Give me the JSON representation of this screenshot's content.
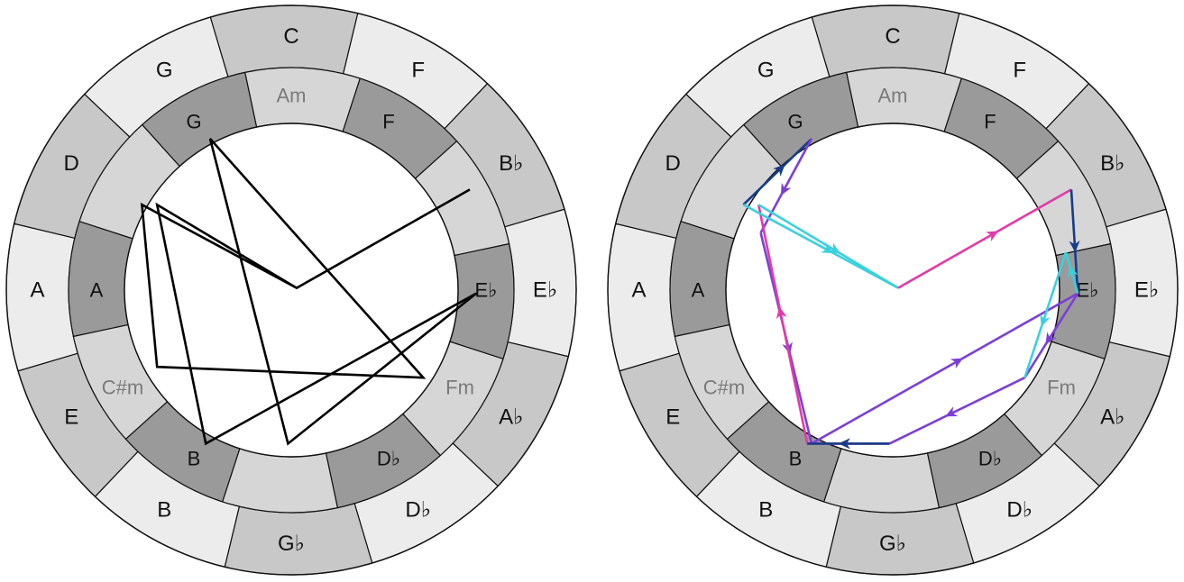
{
  "outer_keys": [
    "C",
    "F",
    "B♭",
    "E♭",
    "A♭",
    "D♭",
    "G♭",
    "B",
    "E",
    "A",
    "D",
    "G"
  ],
  "outer_fills": [
    "#c8c8c8",
    "#ececec",
    "#c8c8c8",
    "#ececec",
    "#c8c8c8",
    "#ececec",
    "#c8c8c8",
    "#ececec",
    "#c8c8c8",
    "#ececec",
    "#c8c8c8",
    "#ececec"
  ],
  "outer_label_visible": [
    true,
    false,
    true,
    false,
    true,
    false,
    true,
    false,
    true,
    false,
    true,
    false
  ],
  "inner_keys": [
    "Am",
    "F",
    "",
    "E♭",
    "Fm",
    "D♭",
    "",
    "B",
    "C#m",
    "A",
    "",
    "G"
  ],
  "inner_fills": [
    "#d6d6d6",
    "#9a9a9a",
    "#d6d6d6",
    "#9a9a9a",
    "#d6d6d6",
    "#9a9a9a",
    "#d6d6d6",
    "#9a9a9a",
    "#d6d6d6",
    "#9a9a9a",
    "#d6d6d6",
    "#9a9a9a"
  ],
  "inner_label_colors": [
    "#7a7a7a",
    "#111111",
    "#111111",
    "#111111",
    "#7a7a7a",
    "#111111",
    "#111111",
    "#111111",
    "#7a7a7a",
    "#111111",
    "#111111",
    "#111111"
  ],
  "left_diagram": {
    "vertices": [
      [
        1.65,
        0.93
      ],
      [
        0.05,
        0.02
      ],
      [
        -1.38,
        0.79
      ],
      [
        -1.24,
        -0.71
      ],
      [
        1.22,
        -0.81
      ],
      [
        -0.75,
        1.4
      ],
      [
        -0.03,
        -1.42
      ],
      [
        1.71,
        -0.03
      ],
      [
        -0.79,
        -1.42
      ],
      [
        -1.24,
        0.79
      ],
      [
        0.05,
        0.02
      ]
    ],
    "closed": true,
    "color": "#000000"
  },
  "right_diagram": {
    "segments": [
      {
        "from": [
          -1.38,
          0.79
        ],
        "to": [
          -0.75,
          1.4
        ],
        "color": "#153d8a"
      },
      {
        "from": [
          -0.75,
          1.4
        ],
        "to": [
          -1.22,
          0.53
        ],
        "color": "#7b3fd6"
      },
      {
        "from": [
          -1.22,
          0.53
        ],
        "to": [
          -0.75,
          -1.42
        ],
        "color": "#7b3fd6"
      },
      {
        "from": [
          -0.75,
          -1.42
        ],
        "to": [
          1.71,
          -0.03
        ],
        "color": "#7b3fd6"
      },
      {
        "from": [
          1.71,
          -0.03
        ],
        "to": [
          1.22,
          -0.81
        ],
        "color": "#7b3fd6"
      },
      {
        "from": [
          1.22,
          -0.81
        ],
        "to": [
          -0.03,
          -1.42
        ],
        "color": "#7b3fd6"
      },
      {
        "from": [
          -0.03,
          -1.42
        ],
        "to": [
          -0.79,
          -1.42
        ],
        "color": "#e23aa9"
      },
      {
        "from": [
          -0.79,
          -1.42
        ],
        "to": [
          -1.24,
          0.79
        ],
        "color": "#e23aa9"
      },
      {
        "from": [
          -1.24,
          0.79
        ],
        "to": [
          0.05,
          0.02
        ],
        "color": "#3ad0dd"
      },
      {
        "from": [
          -1.38,
          0.79
        ],
        "to": [
          0.05,
          0.02
        ],
        "color": "#3ad0dd"
      },
      {
        "from": [
          0.05,
          0.02
        ],
        "to": [
          1.65,
          0.93
        ],
        "color": "#e23aa9"
      },
      {
        "from": [
          1.65,
          0.93
        ],
        "to": [
          1.71,
          -0.03
        ],
        "color": "#153d8a"
      },
      {
        "from": [
          1.71,
          -0.03
        ],
        "to": [
          1.6,
          0.35
        ],
        "color": "#3ad0dd"
      },
      {
        "from": [
          1.6,
          0.35
        ],
        "to": [
          1.22,
          -0.81
        ],
        "color": "#3ad0dd"
      },
      {
        "from": [
          -0.03,
          -1.42
        ],
        "to": [
          -0.79,
          -1.42
        ],
        "color": "#153d8a"
      }
    ]
  }
}
